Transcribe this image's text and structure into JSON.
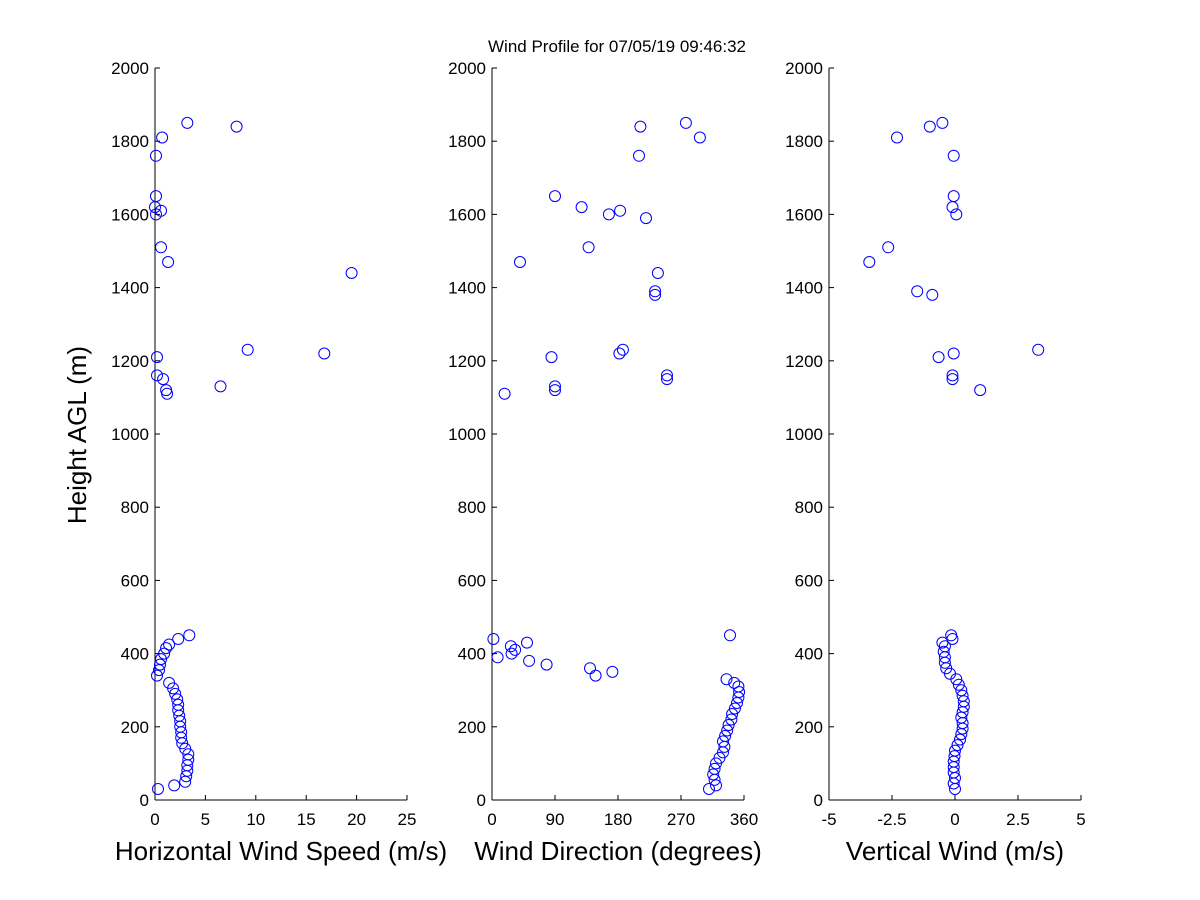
{
  "title": "Wind Profile for  07/05/19 09:46:32",
  "ylabel": "Height AGL (m)",
  "marker_color": "#0000ff",
  "chart_data": [
    {
      "type": "scatter",
      "xlabel": "Horizontal Wind Speed (m/s)",
      "xlim": [
        0,
        25
      ],
      "xticks": [
        0,
        5,
        10,
        15,
        20,
        25
      ],
      "xtick_labels": [
        "0",
        "5",
        "10",
        "15",
        "20",
        "25"
      ],
      "ylim": [
        0,
        2000
      ],
      "yticks": [
        0,
        200,
        400,
        600,
        800,
        1000,
        1200,
        1400,
        1600,
        1800,
        2000
      ],
      "points": [
        [
          0.3,
          30
        ],
        [
          1.9,
          40
        ],
        [
          3.0,
          50
        ],
        [
          3.1,
          65
        ],
        [
          3.2,
          80
        ],
        [
          3.2,
          95
        ],
        [
          3.3,
          110
        ],
        [
          3.3,
          125
        ],
        [
          3.0,
          140
        ],
        [
          2.7,
          155
        ],
        [
          2.6,
          170
        ],
        [
          2.6,
          185
        ],
        [
          2.5,
          200
        ],
        [
          2.5,
          215
        ],
        [
          2.4,
          230
        ],
        [
          2.3,
          245
        ],
        [
          2.3,
          260
        ],
        [
          2.2,
          275
        ],
        [
          2.0,
          290
        ],
        [
          1.8,
          305
        ],
        [
          1.4,
          320
        ],
        [
          0.2,
          340
        ],
        [
          0.4,
          355
        ],
        [
          0.5,
          370
        ],
        [
          0.6,
          385
        ],
        [
          0.9,
          400
        ],
        [
          1.1,
          415
        ],
        [
          1.4,
          425
        ],
        [
          2.3,
          440
        ],
        [
          3.4,
          450
        ],
        [
          1.2,
          1110
        ],
        [
          1.1,
          1120
        ],
        [
          0.8,
          1150
        ],
        [
          0.2,
          1160
        ],
        [
          6.5,
          1130
        ],
        [
          0.2,
          1210
        ],
        [
          9.2,
          1230
        ],
        [
          16.8,
          1220
        ],
        [
          19.5,
          1440
        ],
        [
          1.3,
          1470
        ],
        [
          0.6,
          1510
        ],
        [
          0.1,
          1600
        ],
        [
          0.6,
          1610
        ],
        [
          0.0,
          1620
        ],
        [
          0.1,
          1650
        ],
        [
          0.1,
          1760
        ],
        [
          0.7,
          1810
        ],
        [
          8.1,
          1840
        ],
        [
          3.2,
          1850
        ]
      ]
    },
    {
      "type": "scatter",
      "xlabel": "Wind Direction (degrees)",
      "xlim": [
        0,
        360
      ],
      "xticks": [
        0,
        90,
        180,
        270,
        360
      ],
      "xtick_labels": [
        "0",
        "90",
        "180",
        "270",
        "360"
      ],
      "ylim": [
        0,
        2000
      ],
      "yticks": [
        0,
        200,
        400,
        600,
        800,
        1000,
        1200,
        1400,
        1600,
        1800,
        2000
      ],
      "points": [
        [
          310,
          30
        ],
        [
          320,
          40
        ],
        [
          318,
          55
        ],
        [
          316,
          70
        ],
        [
          318,
          85
        ],
        [
          320,
          100
        ],
        [
          325,
          115
        ],
        [
          330,
          130
        ],
        [
          332,
          145
        ],
        [
          330,
          160
        ],
        [
          333,
          175
        ],
        [
          336,
          190
        ],
        [
          338,
          205
        ],
        [
          342,
          220
        ],
        [
          343,
          235
        ],
        [
          347,
          250
        ],
        [
          350,
          265
        ],
        [
          352,
          280
        ],
        [
          353,
          295
        ],
        [
          352,
          310
        ],
        [
          346,
          320
        ],
        [
          335,
          330
        ],
        [
          148,
          340
        ],
        [
          140,
          360
        ],
        [
          172,
          350
        ],
        [
          78,
          370
        ],
        [
          53,
          380
        ],
        [
          8,
          390
        ],
        [
          28,
          400
        ],
        [
          33,
          410
        ],
        [
          27,
          420
        ],
        [
          50,
          430
        ],
        [
          2,
          440
        ],
        [
          340,
          450
        ],
        [
          18,
          1110
        ],
        [
          90,
          1120
        ],
        [
          90,
          1130
        ],
        [
          250,
          1150
        ],
        [
          250,
          1160
        ],
        [
          85,
          1210
        ],
        [
          182,
          1220
        ],
        [
          187,
          1230
        ],
        [
          233,
          1380
        ],
        [
          233,
          1390
        ],
        [
          237,
          1440
        ],
        [
          40,
          1470
        ],
        [
          138,
          1510
        ],
        [
          220,
          1590
        ],
        [
          167,
          1600
        ],
        [
          183,
          1610
        ],
        [
          128,
          1620
        ],
        [
          90,
          1650
        ],
        [
          210,
          1760
        ],
        [
          297,
          1810
        ],
        [
          212,
          1840
        ],
        [
          277,
          1850
        ]
      ]
    },
    {
      "type": "scatter",
      "xlabel": "Vertical Wind (m/s)",
      "xlim": [
        -5,
        5
      ],
      "xticks": [
        -5,
        -2.5,
        0,
        2.5,
        5
      ],
      "xtick_labels": [
        "-5",
        "-2.5",
        "0",
        "2.5",
        "5"
      ],
      "ylim": [
        0,
        2000
      ],
      "yticks": [
        0,
        200,
        400,
        600,
        800,
        1000,
        1200,
        1400,
        1600,
        1800,
        2000
      ],
      "points": [
        [
          0.0,
          30
        ],
        [
          -0.05,
          45
        ],
        [
          0.0,
          60
        ],
        [
          -0.05,
          75
        ],
        [
          -0.05,
          90
        ],
        [
          -0.05,
          105
        ],
        [
          -0.02,
          120
        ],
        [
          0.0,
          135
        ],
        [
          0.1,
          150
        ],
        [
          0.2,
          165
        ],
        [
          0.25,
          180
        ],
        [
          0.3,
          195
        ],
        [
          0.3,
          210
        ],
        [
          0.25,
          225
        ],
        [
          0.3,
          240
        ],
        [
          0.35,
          255
        ],
        [
          0.35,
          270
        ],
        [
          0.3,
          285
        ],
        [
          0.25,
          300
        ],
        [
          0.15,
          315
        ],
        [
          0.05,
          330
        ],
        [
          -0.2,
          345
        ],
        [
          -0.35,
          360
        ],
        [
          -0.4,
          375
        ],
        [
          -0.4,
          390
        ],
        [
          -0.45,
          405
        ],
        [
          -0.4,
          420
        ],
        [
          -0.5,
          430
        ],
        [
          -0.1,
          440
        ],
        [
          -0.15,
          450
        ],
        [
          1.0,
          1120
        ],
        [
          -0.1,
          1150
        ],
        [
          -0.1,
          1160
        ],
        [
          -0.65,
          1210
        ],
        [
          -0.05,
          1220
        ],
        [
          3.3,
          1230
        ],
        [
          -0.9,
          1380
        ],
        [
          -1.5,
          1390
        ],
        [
          -3.4,
          1470
        ],
        [
          -2.65,
          1510
        ],
        [
          0.05,
          1600
        ],
        [
          -0.1,
          1620
        ],
        [
          -0.05,
          1650
        ],
        [
          -0.05,
          1760
        ],
        [
          -2.3,
          1810
        ],
        [
          -1.0,
          1840
        ],
        [
          -0.5,
          1850
        ]
      ]
    }
  ]
}
